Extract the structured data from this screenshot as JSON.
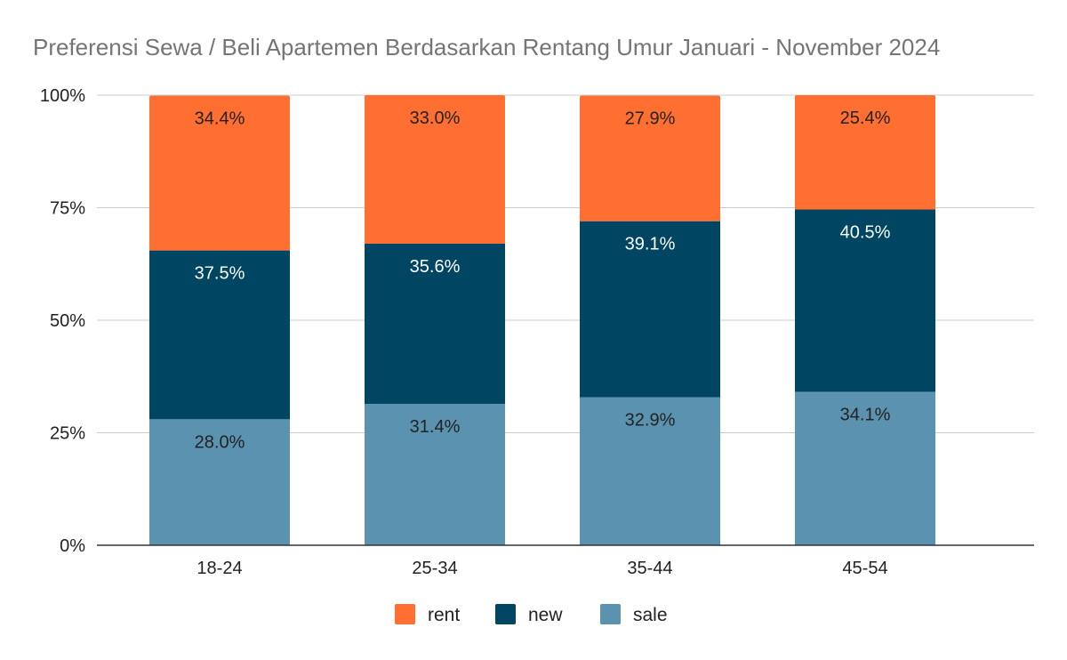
{
  "chart_data": {
    "type": "bar",
    "stacked": true,
    "percent": true,
    "title": "Preferensi Sewa / Beli Apartemen Berdasarkan Rentang Umur Januari - November 2024",
    "xlabel": "",
    "ylabel": "",
    "ylim": [
      0,
      100
    ],
    "yticks": [
      "0%",
      "25%",
      "50%",
      "75%",
      "100%"
    ],
    "categories": [
      "18-24",
      "25-34",
      "35-44",
      "45-54"
    ],
    "series": [
      {
        "name": "sale",
        "color": "#5b92b0",
        "label_color": "#222222",
        "values": [
          28.0,
          31.4,
          32.9,
          34.1
        ],
        "labels": [
          "28.0%",
          "31.4%",
          "32.9%",
          "34.1%"
        ]
      },
      {
        "name": "new",
        "color": "#004561",
        "label_color": "#ffffff",
        "values": [
          37.5,
          35.6,
          39.1,
          40.5
        ],
        "labels": [
          "37.5%",
          "35.6%",
          "39.1%",
          "40.5%"
        ]
      },
      {
        "name": "rent",
        "color": "#ff6f31",
        "label_color": "#222222",
        "values": [
          34.4,
          33.0,
          27.9,
          25.4
        ],
        "labels": [
          "34.4%",
          "33.0%",
          "27.9%",
          "25.4%"
        ]
      }
    ],
    "legend": {
      "position": "bottom",
      "order": [
        "rent",
        "new",
        "sale"
      ]
    },
    "grid": true
  }
}
